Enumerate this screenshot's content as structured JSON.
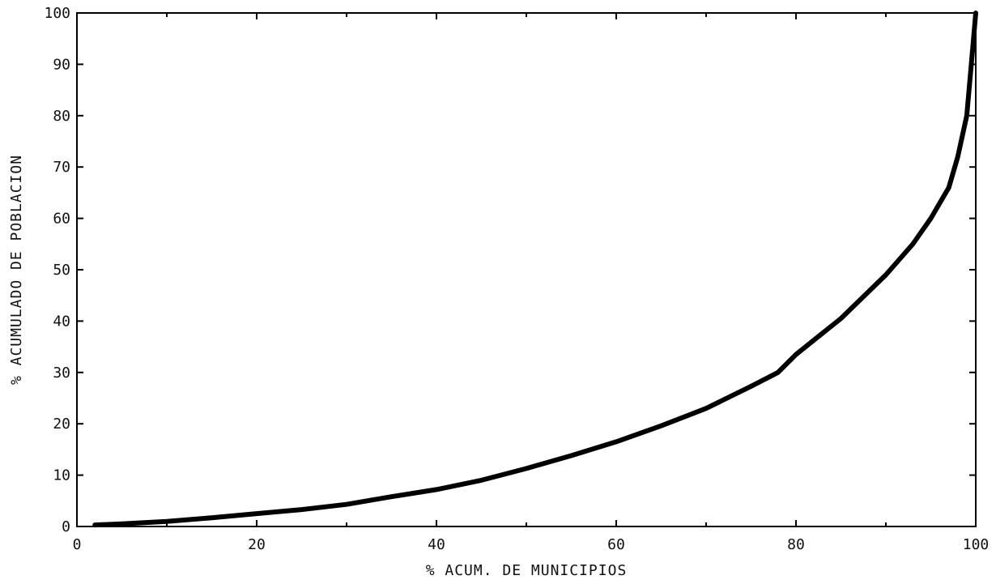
{
  "chart_data": {
    "type": "line",
    "title": "",
    "xlabel": "% ACUM. DE MUNICIPIOS",
    "ylabel": "% ACUMULADO DE POBLACION",
    "xlim": [
      0,
      100
    ],
    "ylim": [
      0,
      100
    ],
    "x_ticks": [
      0,
      20,
      40,
      60,
      80,
      100
    ],
    "y_ticks": [
      0,
      10,
      20,
      30,
      40,
      50,
      60,
      70,
      80,
      90,
      100
    ],
    "x_minor_ticks": [
      10,
      30,
      50,
      70,
      90
    ],
    "grid": false,
    "legend": "none",
    "line_color": "#000000",
    "series": [
      {
        "x": [
          2,
          5,
          10,
          15,
          20,
          25,
          30,
          35,
          40,
          45,
          50,
          55,
          60,
          65,
          70,
          75,
          78,
          80,
          85,
          90,
          93,
          95,
          97,
          98,
          99,
          99.5,
          100
        ],
        "y": [
          0.3,
          0.5,
          1,
          1.7,
          2.5,
          3.3,
          4.3,
          5.8,
          7.2,
          9,
          11.3,
          13.8,
          16.5,
          19.6,
          23,
          27.3,
          30,
          33.5,
          40.5,
          49,
          55,
          60,
          66,
          72,
          80,
          90,
          100
        ]
      }
    ]
  }
}
